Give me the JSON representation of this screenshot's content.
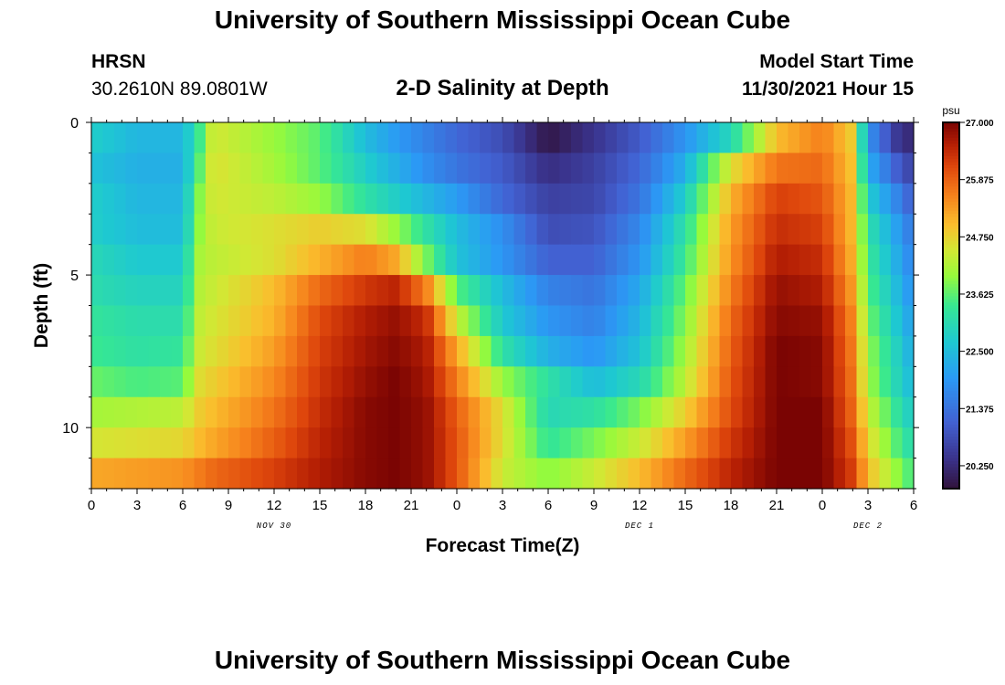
{
  "header": {
    "title": "University of Southern Mississippi Ocean Cube",
    "station": "HRSN",
    "coords": "30.2610N  89.0801W",
    "plot_title": "2-D Salinity at Depth",
    "model_label": "Model Start Time",
    "model_time": "11/30/2021 Hour 15"
  },
  "footer": {
    "title": "University of Southern Mississippi Ocean Cube"
  },
  "chart_data": {
    "type": "heatmap",
    "title": "2-D Salinity at Depth",
    "xlabel": "Forecast Time(Z)",
    "ylabel": "Depth (ft)",
    "x_hours": [
      0,
      3,
      6,
      9,
      12,
      15,
      18,
      21,
      24,
      27,
      30,
      33,
      36,
      39,
      42,
      45,
      48,
      51,
      54
    ],
    "x_tick_labels": [
      "0",
      "3",
      "6",
      "9",
      "12",
      "15",
      "18",
      "21",
      "0",
      "3",
      "6",
      "9",
      "12",
      "15",
      "18",
      "21",
      "0",
      "3",
      "6"
    ],
    "date_labels": [
      {
        "label": "NOV 30",
        "hour": 12
      },
      {
        "label": "DEC 1",
        "hour": 36
      },
      {
        "label": "DEC 2",
        "hour": 51
      }
    ],
    "xlim": [
      0,
      54
    ],
    "ylim": [
      0,
      12
    ],
    "y_ticks": [
      0,
      5,
      10
    ],
    "y_tick_labels": [
      "0",
      "5",
      "10"
    ],
    "colorbar": {
      "unit": "psu",
      "vmin": 19.8,
      "vmax": 27.0,
      "tick_values": [
        27.0,
        25.875,
        24.75,
        23.625,
        22.5,
        21.375,
        20.25
      ],
      "tick_labels": [
        "27.000",
        "25.875",
        "24.750",
        "23.625",
        "22.500",
        "21.375",
        "20.250"
      ]
    },
    "depth_rows": [
      0.5,
      1.5,
      2.5,
      3.5,
      4.5,
      5.5,
      6.5,
      7.5,
      8.5,
      9.5,
      10.5,
      11.5
    ],
    "key_hours": [
      0,
      3,
      6,
      7,
      8,
      12,
      15,
      18,
      20,
      22,
      24,
      27,
      30,
      33,
      36,
      39,
      42,
      45,
      48,
      50,
      51,
      53,
      54
    ],
    "salinity_psu": [
      [
        22.8,
        22.4,
        22.4,
        23.3,
        24.5,
        24.0,
        23.6,
        22.5,
        22.0,
        21.6,
        21.2,
        20.8,
        19.9,
        20.4,
        21.0,
        21.9,
        23.0,
        25.0,
        25.6,
        24.8,
        21.9,
        20.4,
        20.2
      ],
      [
        22.6,
        22.3,
        22.3,
        23.5,
        24.6,
        24.1,
        23.6,
        22.8,
        22.3,
        21.8,
        21.4,
        21.0,
        20.3,
        20.6,
        21.2,
        22.3,
        24.6,
        25.7,
        25.8,
        24.9,
        22.3,
        21.0,
        20.6
      ],
      [
        22.8,
        22.4,
        22.4,
        23.8,
        24.5,
        24.3,
        24.0,
        23.2,
        22.8,
        22.4,
        22.0,
        21.2,
        20.6,
        20.7,
        21.4,
        22.8,
        25.1,
        26.2,
        26.0,
        25.0,
        22.8,
        21.6,
        21.0
      ],
      [
        22.8,
        22.5,
        22.5,
        23.9,
        24.4,
        24.6,
        24.8,
        24.6,
        24.0,
        23.2,
        22.5,
        21.8,
        20.8,
        20.9,
        21.7,
        23.2,
        25.3,
        26.4,
        26.2,
        25.0,
        23.2,
        22.0,
        21.4
      ],
      [
        23.0,
        22.7,
        22.7,
        24.1,
        24.3,
        24.6,
        25.1,
        25.6,
        25.2,
        23.8,
        22.6,
        21.9,
        21.1,
        21.1,
        21.9,
        23.4,
        25.4,
        26.6,
        26.4,
        25.1,
        23.4,
        22.2,
        21.6
      ],
      [
        23.1,
        22.9,
        22.9,
        24.2,
        24.4,
        25.0,
        25.8,
        26.3,
        26.5,
        25.6,
        23.6,
        22.5,
        21.6,
        21.4,
        22.2,
        23.7,
        25.6,
        26.8,
        26.6,
        25.3,
        23.6,
        22.4,
        21.8
      ],
      [
        23.3,
        23.1,
        23.1,
        24.3,
        24.5,
        25.1,
        26.1,
        26.6,
        26.8,
        26.4,
        24.4,
        22.7,
        21.9,
        21.6,
        22.4,
        23.9,
        25.8,
        26.9,
        26.8,
        25.5,
        23.8,
        22.6,
        22.0
      ],
      [
        23.4,
        23.2,
        23.3,
        24.4,
        24.6,
        25.3,
        26.2,
        26.7,
        26.9,
        26.6,
        25.2,
        23.2,
        22.3,
        21.9,
        22.6,
        24.1,
        25.9,
        27.0,
        26.9,
        25.6,
        24.0,
        22.8,
        22.2
      ],
      [
        23.7,
        23.5,
        23.6,
        24.6,
        24.8,
        25.5,
        26.3,
        26.8,
        27.0,
        26.7,
        25.6,
        24.0,
        23.2,
        22.5,
        23.0,
        24.3,
        26.0,
        27.0,
        26.9,
        25.7,
        24.1,
        22.9,
        22.4
      ],
      [
        24.1,
        24.2,
        24.3,
        24.8,
        25.0,
        25.7,
        26.4,
        26.9,
        27.0,
        26.8,
        25.9,
        24.6,
        23.0,
        23.2,
        23.8,
        24.8,
        26.1,
        27.0,
        27.0,
        25.8,
        24.4,
        23.2,
        22.7
      ],
      [
        24.5,
        24.6,
        24.7,
        25.0,
        25.2,
        25.9,
        26.5,
        26.9,
        27.0,
        26.8,
        26.0,
        24.6,
        23.3,
        23.8,
        24.4,
        25.3,
        26.3,
        27.0,
        27.0,
        26.0,
        24.7,
        23.5,
        23.0
      ],
      [
        25.2,
        25.3,
        25.4,
        25.6,
        25.8,
        26.2,
        26.6,
        26.9,
        27.0,
        26.8,
        26.0,
        24.4,
        23.9,
        24.4,
        25.0,
        25.8,
        26.5,
        27.0,
        27.0,
        26.2,
        25.0,
        23.9,
        23.4
      ]
    ]
  }
}
